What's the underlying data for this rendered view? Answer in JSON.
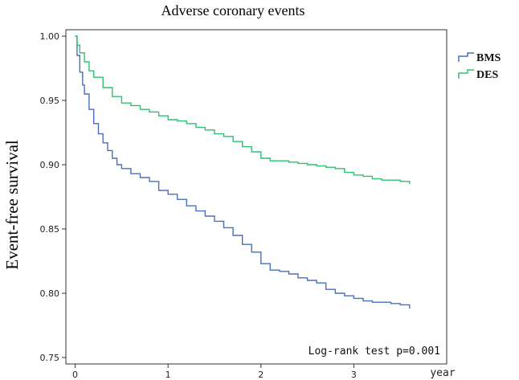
{
  "chart_data": {
    "type": "line",
    "title": "Adverse coronary events",
    "ylabel": "Event-free survival",
    "xlabel": "",
    "x_unit_label": "year",
    "xlim": [
      -0.1,
      4.0
    ],
    "ylim": [
      0.745,
      1.005
    ],
    "x_ticks": [
      0,
      1,
      2,
      3
    ],
    "x_tick_labels": [
      "0",
      "1",
      "2",
      "3"
    ],
    "y_ticks": [
      0.75,
      0.8,
      0.85,
      0.9,
      0.95,
      1.0
    ],
    "y_tick_labels": [
      "0.75",
      "0.80",
      "0.85",
      "0.90",
      "0.95",
      "1.00"
    ],
    "grid": false,
    "legend_position": "right-outside-top",
    "annotation": "Log-rank test p=0.001",
    "series": [
      {
        "name": "BMS",
        "color": "#4a6fbd",
        "x": [
          0,
          0.02,
          0.05,
          0.08,
          0.1,
          0.15,
          0.2,
          0.25,
          0.3,
          0.35,
          0.4,
          0.45,
          0.5,
          0.6,
          0.7,
          0.8,
          0.9,
          1.0,
          1.1,
          1.2,
          1.3,
          1.4,
          1.5,
          1.6,
          1.7,
          1.8,
          1.9,
          2.0,
          2.1,
          2.2,
          2.3,
          2.4,
          2.5,
          2.6,
          2.7,
          2.8,
          2.9,
          3.0,
          3.1,
          3.2,
          3.3,
          3.4,
          3.5,
          3.6
        ],
        "y": [
          1.0,
          0.985,
          0.972,
          0.962,
          0.955,
          0.943,
          0.932,
          0.924,
          0.917,
          0.911,
          0.905,
          0.9,
          0.897,
          0.893,
          0.89,
          0.887,
          0.88,
          0.877,
          0.873,
          0.868,
          0.864,
          0.86,
          0.856,
          0.851,
          0.845,
          0.838,
          0.832,
          0.823,
          0.818,
          0.817,
          0.815,
          0.812,
          0.81,
          0.808,
          0.803,
          0.8,
          0.798,
          0.796,
          0.794,
          0.793,
          0.793,
          0.792,
          0.791,
          0.788
        ]
      },
      {
        "name": "DES",
        "color": "#2fbf71",
        "x": [
          0,
          0.02,
          0.05,
          0.1,
          0.15,
          0.2,
          0.3,
          0.4,
          0.5,
          0.6,
          0.7,
          0.8,
          0.9,
          1.0,
          1.1,
          1.2,
          1.3,
          1.4,
          1.5,
          1.6,
          1.7,
          1.8,
          1.9,
          2.0,
          2.1,
          2.2,
          2.3,
          2.4,
          2.5,
          2.6,
          2.7,
          2.8,
          2.9,
          3.0,
          3.1,
          3.2,
          3.3,
          3.4,
          3.5,
          3.6
        ],
        "y": [
          1.0,
          0.993,
          0.987,
          0.98,
          0.973,
          0.968,
          0.96,
          0.953,
          0.948,
          0.946,
          0.943,
          0.941,
          0.938,
          0.935,
          0.934,
          0.932,
          0.929,
          0.927,
          0.924,
          0.922,
          0.918,
          0.914,
          0.91,
          0.905,
          0.903,
          0.903,
          0.902,
          0.901,
          0.9,
          0.899,
          0.898,
          0.897,
          0.894,
          0.892,
          0.891,
          0.889,
          0.888,
          0.888,
          0.887,
          0.885
        ]
      }
    ]
  }
}
